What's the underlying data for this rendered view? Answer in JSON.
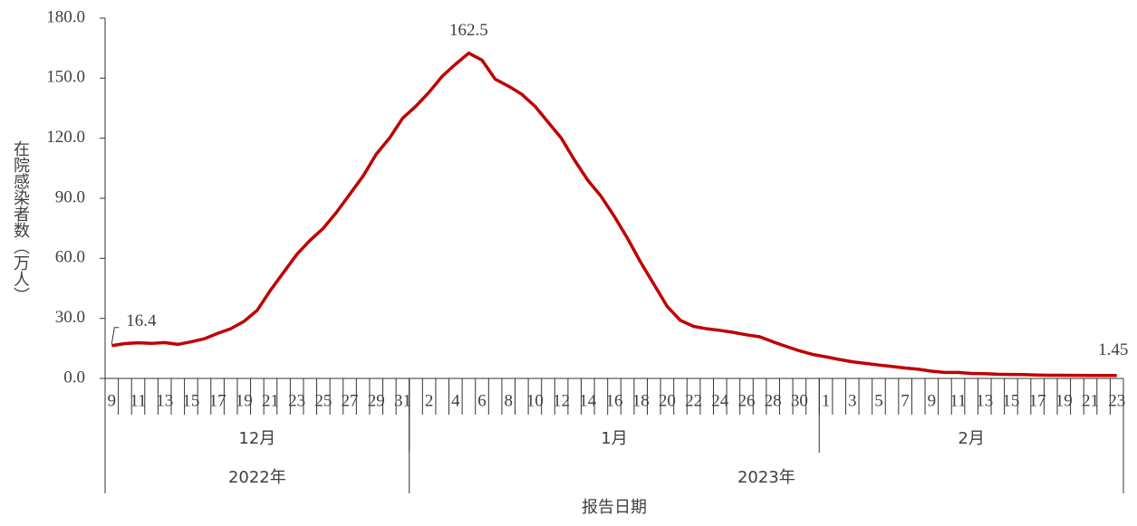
{
  "chart_data": {
    "type": "line",
    "y_label": "在院感染者数（万人）",
    "x_label": "报告日期",
    "categories": [
      "9",
      null,
      "11",
      null,
      "13",
      null,
      "15",
      null,
      "17",
      null,
      "19",
      null,
      "21",
      null,
      "23",
      null,
      "25",
      null,
      "27",
      null,
      "29",
      null,
      "31",
      null,
      "2",
      null,
      "4",
      null,
      "6",
      null,
      "8",
      null,
      "10",
      null,
      "12",
      null,
      "14",
      null,
      "16",
      null,
      "18",
      null,
      "20",
      null,
      "22",
      null,
      "24",
      null,
      "26",
      null,
      "28",
      null,
      "30",
      null,
      "1",
      null,
      "3",
      null,
      "5",
      null,
      "7",
      null,
      "9",
      null,
      "11",
      null,
      "13",
      null,
      "15",
      null,
      "17",
      null,
      "19",
      null,
      "21",
      null,
      "23"
    ],
    "x_groups": [
      {
        "labels": [
          "12月",
          "1月",
          "2月"
        ],
        "sizes": [
          23,
          31,
          23
        ]
      },
      {
        "labels": [
          "2022年",
          "2023年"
        ],
        "sizes": [
          23,
          54
        ]
      }
    ],
    "series": [
      {
        "name": "在院感染者数",
        "color": "#c00000",
        "values": [
          16.4,
          17.4,
          17.8,
          17.5,
          17.9,
          17.0,
          18.3,
          19.8,
          22.5,
          24.8,
          28.5,
          34,
          44,
          53,
          62,
          69,
          75,
          83,
          92,
          101,
          112,
          120,
          130,
          136,
          143,
          151,
          157,
          162.5,
          159,
          149.5,
          146,
          142,
          136,
          128,
          120,
          109,
          99,
          91,
          81,
          70,
          58,
          47,
          36,
          29,
          26,
          24.8,
          24,
          23,
          21.8,
          20.8,
          18.3,
          16,
          13.8,
          12,
          10.8,
          9.5,
          8.3,
          7.5,
          6.7,
          6,
          5.2,
          4.6,
          3.6,
          3.0,
          3.0,
          2.5,
          2.4,
          2.1,
          2.0,
          1.9,
          1.7,
          1.6,
          1.6,
          1.5,
          1.45,
          1.45,
          1.45
        ],
        "value_labels": [
          "16.4",
          null,
          null,
          null,
          null,
          null,
          null,
          null,
          null,
          null,
          null,
          null,
          null,
          null,
          null,
          null,
          null,
          null,
          null,
          null,
          null,
          null,
          null,
          null,
          null,
          null,
          null,
          "162.5",
          null,
          null,
          null,
          null,
          null,
          null,
          null,
          null,
          null,
          null,
          null,
          null,
          null,
          null,
          null,
          null,
          null,
          null,
          null,
          null,
          null,
          null,
          null,
          null,
          null,
          null,
          null,
          null,
          null,
          null,
          null,
          null,
          null,
          null,
          null,
          null,
          null,
          null,
          null,
          null,
          null,
          null,
          null,
          null,
          null,
          null,
          null,
          null,
          "1.45"
        ]
      }
    ],
    "ylim": [
      0,
      180
    ],
    "yticks": [
      {
        "value": 0,
        "label": "0.0"
      },
      {
        "value": 30,
        "label": "30.0"
      },
      {
        "value": 60,
        "label": "60.0"
      },
      {
        "value": 90,
        "label": "90.0"
      },
      {
        "value": 120,
        "label": "120.0"
      },
      {
        "value": 150,
        "label": "150.0"
      },
      {
        "value": 180,
        "label": "180.0"
      }
    ],
    "grid": false
  }
}
